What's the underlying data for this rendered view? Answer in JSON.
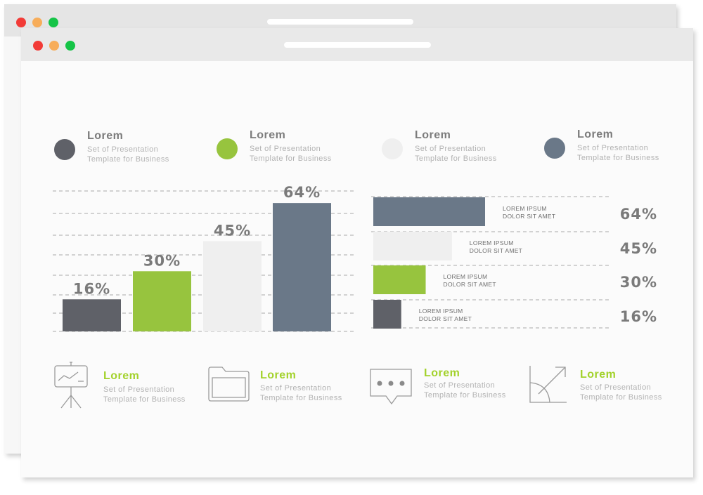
{
  "colors": {
    "dark_gray": "#5f6168",
    "green": "#97c43e",
    "light_gray": "#efefef",
    "slate": "#6a7888",
    "lorem_green": "#a3d22c",
    "text_gray": "#7c7c7c",
    "sub_gray": "#b3b3b3"
  },
  "legend": [
    {
      "title": "Lorem",
      "sub1": "Set of Presentation",
      "sub2": "Template for Business",
      "color": "#5f6168"
    },
    {
      "title": "Lorem",
      "sub1": "Set of Presentation",
      "sub2": "Template for Business",
      "color": "#97c43e"
    },
    {
      "title": "Lorem",
      "sub1": "Set of Presentation",
      "sub2": "Template for Business",
      "color": "#efefef"
    },
    {
      "title": "Lorem",
      "sub1": "Set of Presentation",
      "sub2": "Template for Business",
      "color": "#6a7888"
    }
  ],
  "chart_data": [
    {
      "type": "bar",
      "orientation": "vertical",
      "values": [
        16,
        30,
        45,
        64
      ],
      "value_labels": [
        "16%",
        "30%",
        "45%",
        "64%"
      ],
      "colors": [
        "#5f6168",
        "#97c43e",
        "#efefef",
        "#6a7888"
      ],
      "grid": "dashed horizontal",
      "ylim": [
        0,
        70
      ]
    },
    {
      "type": "bar",
      "orientation": "horizontal",
      "rows": [
        {
          "line1": "LOREM IPSUM",
          "line2": "DOLOR SIT AMET",
          "value": 64,
          "value_label": "64%",
          "color": "#6a7888"
        },
        {
          "line1": "LOREM IPSUM",
          "line2": "DOLOR SIT AMET",
          "value": 45,
          "value_label": "45%",
          "color": "#efefef"
        },
        {
          "line1": "LOREM IPSUM",
          "line2": "DOLOR SIT AMET",
          "value": 30,
          "value_label": "30%",
          "color": "#97c43e"
        },
        {
          "line1": "LOREM IPSUM",
          "line2": "DOLOR SIT AMET",
          "value": 16,
          "value_label": "16%",
          "color": "#5f6168"
        }
      ],
      "grid": "dashed horizontal",
      "xlim": [
        0,
        64
      ]
    }
  ],
  "features": [
    {
      "icon": "presentation-board-icon",
      "title": "Lorem",
      "sub1": "Set of Presentation",
      "sub2": "Template for Business"
    },
    {
      "icon": "folder-icon",
      "title": "Lorem",
      "sub1": "Set of Presentation",
      "sub2": "Template for Business"
    },
    {
      "icon": "chat-bubble-icon",
      "title": "Lorem",
      "sub1": "Set of Presentation",
      "sub2": "Template for Business"
    },
    {
      "icon": "growth-chart-icon",
      "title": "Lorem",
      "sub1": "Set of Presentation",
      "sub2": "Template for Business"
    }
  ]
}
